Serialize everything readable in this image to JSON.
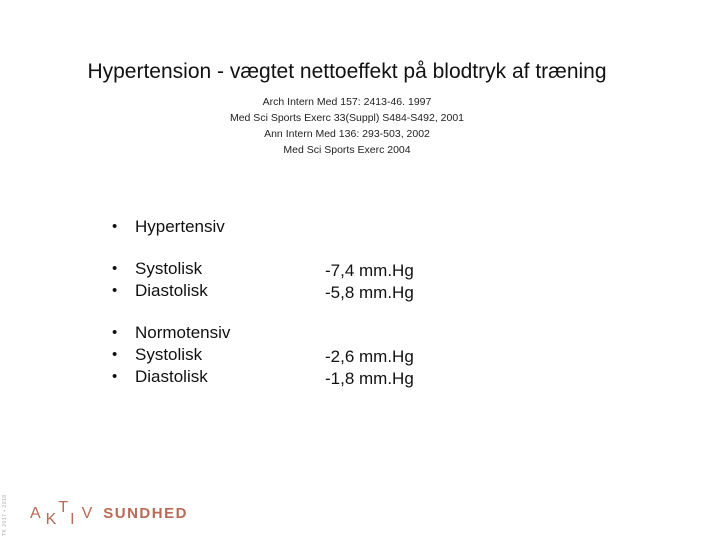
{
  "slide": {
    "title": "Hypertension - vægtet nettoeffekt på blodtryk af træning",
    "references": [
      "Arch Intern Med 157: 2413-46. 1997",
      "Med Sci Sports Exerc 33(Suppl) S484-S492, 2001",
      "Ann Intern Med 136: 293-503, 2002",
      "Med Sci Sports Exerc 2004"
    ],
    "bullet_glyph": "•",
    "groups": [
      {
        "items": [
          "Hypertensiv"
        ]
      },
      {
        "items": [
          "Systolisk",
          "Diastolisk"
        ]
      },
      {
        "items": [
          "Normotensiv",
          "Systolisk",
          "Diastolisk"
        ]
      }
    ],
    "values": {
      "hypertensive": [
        "-7,4 mm.Hg",
        "-5,8 mm.Hg"
      ],
      "normotensive": [
        "-2,6 mm.Hg",
        "-1,8 mm.Hg"
      ]
    }
  },
  "logo": {
    "letters": [
      "A",
      "K",
      "T",
      "I",
      "V"
    ],
    "word": "SUNDHED",
    "color": "#b86a55"
  },
  "side_text": "TK 2017 • 2018"
}
